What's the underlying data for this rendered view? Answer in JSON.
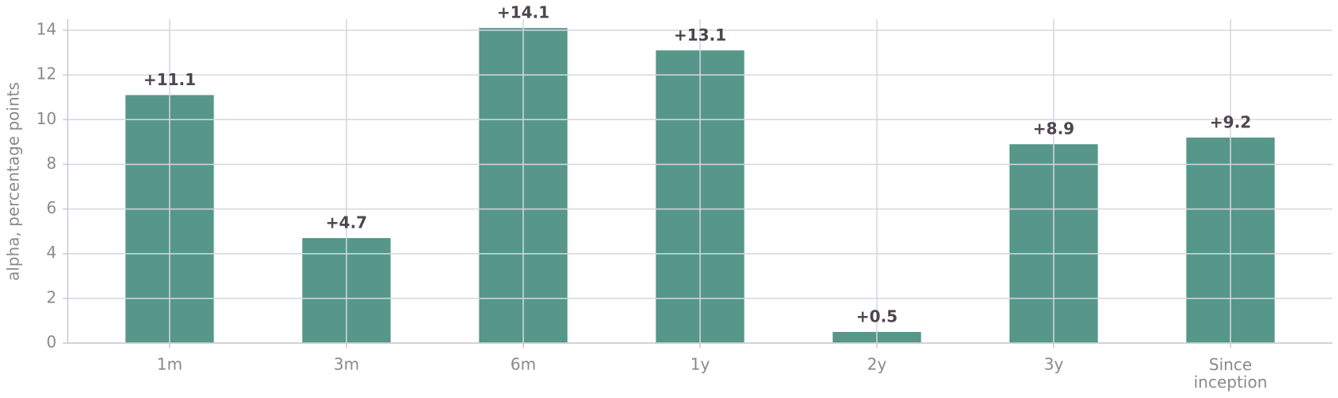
{
  "chart_data": {
    "type": "bar",
    "y_label": "alpha, percentage points",
    "categories": [
      "1m",
      "3m",
      "6m",
      "1y",
      "2y",
      "3y",
      "Since\ninception"
    ],
    "values": [
      11.1,
      4.7,
      14.1,
      13.1,
      0.5,
      8.9,
      9.2
    ],
    "value_labels": [
      "+11.1",
      "+4.7",
      "+14.1",
      "+13.1",
      "+0.5",
      "+8.9",
      "+9.2"
    ],
    "color": "#56978a",
    "ylim": [
      0,
      14.5
    ],
    "yticks": [
      0,
      2,
      4,
      6,
      8,
      10,
      12,
      14
    ],
    "grid": true
  }
}
